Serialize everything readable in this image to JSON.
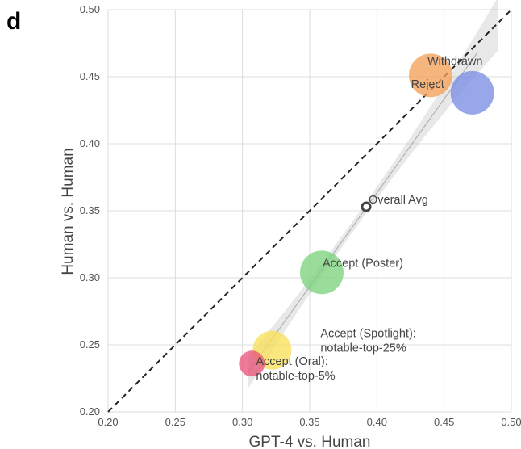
{
  "panel_label": "d",
  "chart_data": {
    "type": "scatter",
    "xlabel": "GPT-4 vs. Human",
    "ylabel": "Human vs. Human",
    "xlim": [
      0.2,
      0.5
    ],
    "ylim": [
      0.2,
      0.5
    ],
    "x_ticks": [
      "0.20",
      "0.25",
      "0.30",
      "0.35",
      "0.40",
      "0.45",
      "0.50"
    ],
    "y_ticks": [
      "0.20",
      "0.25",
      "0.30",
      "0.35",
      "0.40",
      "0.45",
      "0.50"
    ],
    "grid": true,
    "reference_line": "y = x (dashed)",
    "trend_line": "linear fit with confidence band",
    "points": [
      {
        "label": [
          "Withdrawn"
        ],
        "x": 0.44,
        "y": 0.451,
        "size": "large",
        "color": "#f5a05a"
      },
      {
        "label": [
          "Reject"
        ],
        "x": 0.471,
        "y": 0.438,
        "size": "large",
        "color": "#7b8ee3"
      },
      {
        "label": [
          "Overall Avg"
        ],
        "x": 0.392,
        "y": 0.353,
        "size": "small",
        "color": "#555555"
      },
      {
        "label": [
          "Accept (Poster)"
        ],
        "x": 0.359,
        "y": 0.304,
        "size": "large",
        "color": "#7dd37d"
      },
      {
        "label": [
          "Accept (Spotlight):",
          "notable-top-25%"
        ],
        "x": 0.322,
        "y": 0.246,
        "size": "medium",
        "color": "#f8e05a"
      },
      {
        "label": [
          "Accept (Oral):",
          "notable-top-5%"
        ],
        "x": 0.307,
        "y": 0.236,
        "size": "small-medium",
        "color": "#e8557a"
      }
    ]
  }
}
